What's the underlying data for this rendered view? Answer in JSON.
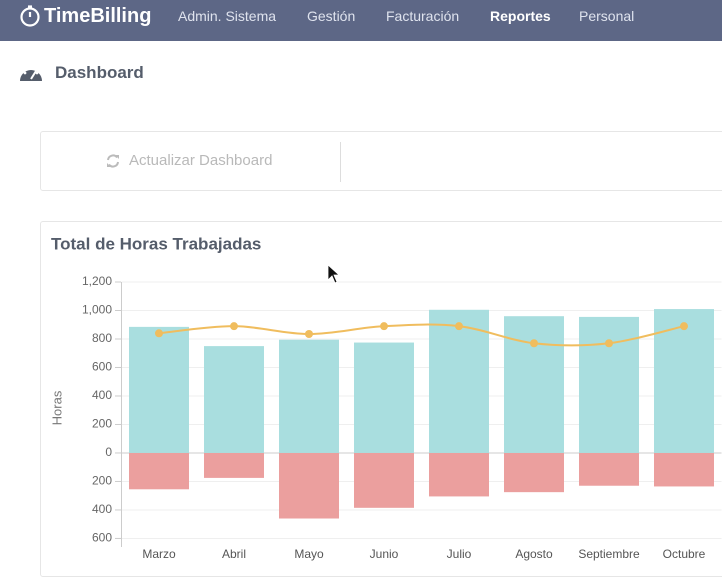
{
  "nav": {
    "brand": "TimeBilling",
    "items": [
      "Admin. Sistema",
      "Gestión",
      "Facturación",
      "Reportes",
      "Personal"
    ],
    "active": 3
  },
  "page_title": "Dashboard",
  "refresh_button": "Actualizar Dashboard",
  "chart_data": {
    "type": "bar-line",
    "title": "Total de Horas Trabajadas",
    "y_label": "Horas",
    "categories": [
      "Marzo",
      "Abril",
      "Mayo",
      "Junio",
      "Julio",
      "Agosto",
      "Septiembre",
      "Octubre"
    ],
    "series": [
      {
        "type": "bar",
        "color": "#a9dedf",
        "values": [
          885,
          750,
          795,
          775,
          1005,
          960,
          955,
          1010
        ]
      },
      {
        "type": "bar",
        "color": "#eb9f9e",
        "values": [
          -255,
          -175,
          -460,
          -385,
          -305,
          -275,
          -230,
          -235
        ]
      },
      {
        "type": "line",
        "color": "#f0bd5e",
        "values": [
          840,
          890,
          835,
          890,
          890,
          770,
          770,
          890
        ]
      }
    ],
    "ylim": [
      -660,
      1200
    ],
    "yticks": [
      {
        "value": 1200,
        "label": "1,200"
      },
      {
        "value": 1000,
        "label": "1,000"
      },
      800,
      600,
      400,
      200,
      0,
      {
        "value": -200,
        "label": "200"
      },
      {
        "value": -400,
        "label": "400"
      },
      {
        "value": -600,
        "label": "600"
      }
    ],
    "grid": true
  }
}
